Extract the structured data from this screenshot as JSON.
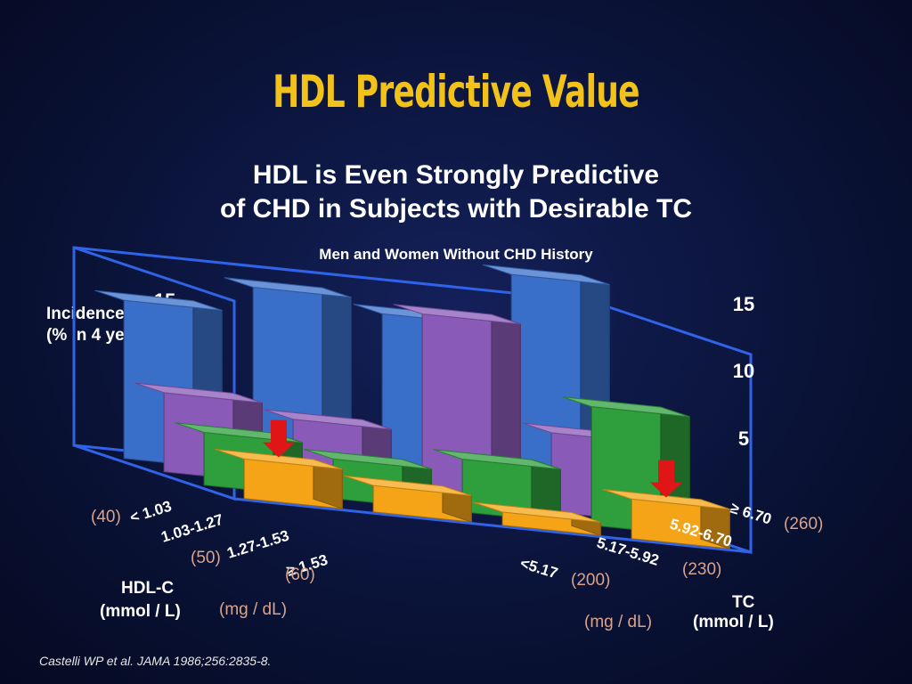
{
  "slide": {
    "title": "HDL Predictive Value",
    "subtitle_line1": "HDL is Even Strongly Predictive",
    "subtitle_line2": "of CHD in Subjects with Desirable TC",
    "citation": "Castelli WP et al. JAMA 1986;256:2835-8."
  },
  "chart_data": {
    "type": "bar3d",
    "title": "Men and Women Without CHD History",
    "ylabel_line1": "Incidence",
    "ylabel_line2": "(% in 4 years)",
    "ylim": [
      0,
      15
    ],
    "yticks": [
      "5",
      "10",
      "15"
    ],
    "hdl_axis": {
      "title_line1": "HDL-C",
      "title_line2": "(mmol / L)",
      "unit_alt": "(mg / dL)",
      "categories": [
        "< 1.03",
        "1.03-1.27",
        "1.27-1.53",
        "≥ 1.53"
      ],
      "mg_labels": [
        "(40)",
        "(50)",
        "(60)"
      ]
    },
    "tc_axis": {
      "title_line1": "TC",
      "title_line2": "(mmol / L)",
      "unit_alt": "(mg / dL)",
      "categories": [
        "<5.17",
        "5.17-5.92",
        "5.92-6.70",
        "≥ 6.70"
      ],
      "mg_labels": [
        "(200)",
        "(230)",
        "(260)"
      ]
    },
    "series": [
      {
        "hdl": "< 1.03",
        "color": "#3a6fc9",
        "values": [
          12,
          14,
          13,
          17
        ]
      },
      {
        "hdl": "1.03-1.27",
        "color": "#8a5ab8",
        "values": [
          6,
          5,
          14,
          6
        ]
      },
      {
        "hdl": "1.27-1.53",
        "color": "#2f9e3c",
        "values": [
          4,
          3,
          4,
          9
        ]
      },
      {
        "hdl": "≥ 1.53",
        "color": "#f4a416",
        "values": [
          3,
          2,
          1,
          3
        ]
      }
    ],
    "highlight_arrows": [
      "≥ 1.53 / <5.17",
      "≥ 1.53 / ≥ 6.70"
    ]
  }
}
